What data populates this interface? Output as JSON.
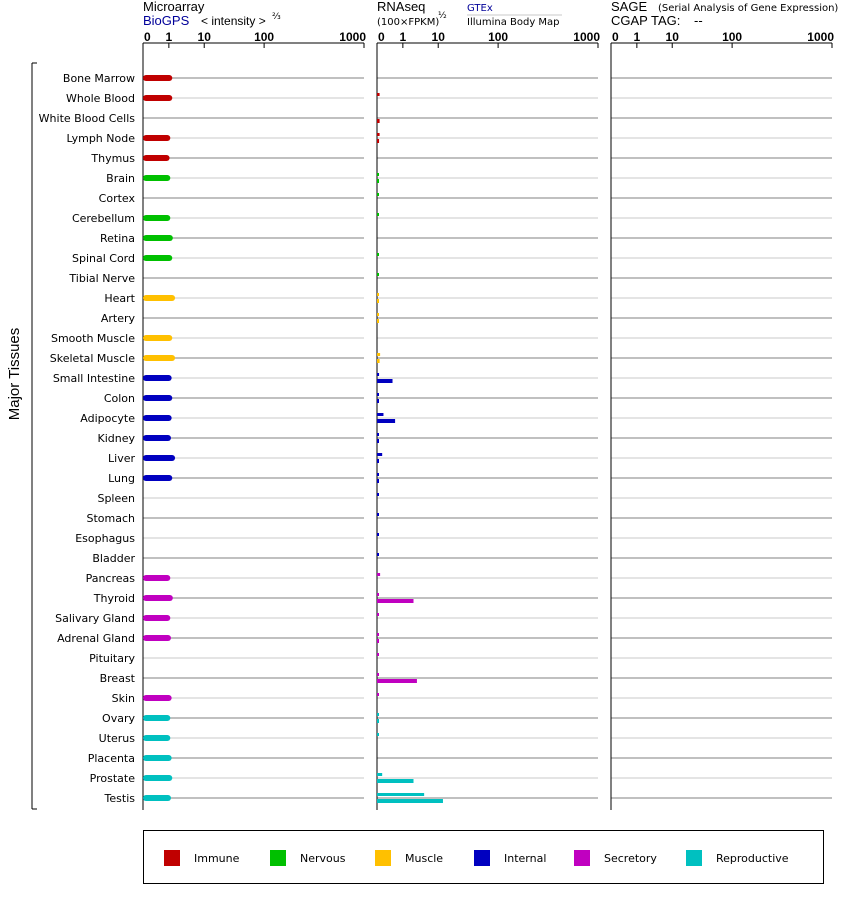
{
  "panels": {
    "microarray": {
      "title": "Microarray",
      "source": "BioGPS",
      "unit_label": "< intensity >",
      "unit_exponent": "⅔",
      "ticks": [
        "0",
        "1",
        "10",
        "100",
        "1000"
      ]
    },
    "rnaseq": {
      "title": "RNAseq",
      "unit_label": "(100×FPKM)",
      "unit_exponent": "½",
      "source_gtex": "GTEx",
      "source_illumina": "Illumina Body Map",
      "ticks": [
        "0",
        "1",
        "10",
        "100",
        "1000"
      ]
    },
    "sage": {
      "title": "SAGE",
      "subtitle": "(Serial Analysis of Gene Expression)",
      "tag_label": "CGAP TAG:",
      "tag_value": "--",
      "ticks": [
        "0",
        "1",
        "10",
        "100",
        "1000"
      ]
    }
  },
  "side_label": "Major Tissues",
  "colors": {
    "Immune": "#c00000",
    "Nervous": "#00c000",
    "Muscle": "#ffc000",
    "Internal": "#0000c0",
    "Secretory": "#c000c0",
    "Reproductive": "#00c0c0"
  },
  "legend": [
    "Immune",
    "Nervous",
    "Muscle",
    "Internal",
    "Secretory",
    "Reproductive"
  ],
  "chart_data": {
    "type": "bar",
    "scale": "log-like (0, 1, 10, 100, 1000)",
    "categories": [
      "Bone Marrow",
      "Whole Blood",
      "White Blood Cells",
      "Lymph Node",
      "Thymus",
      "Brain",
      "Cortex",
      "Cerebellum",
      "Retina",
      "Spinal Cord",
      "Tibial Nerve",
      "Heart",
      "Artery",
      "Smooth Muscle",
      "Skeletal Muscle",
      "Small Intestine",
      "Colon",
      "Adipocyte",
      "Kidney",
      "Liver",
      "Lung",
      "Spleen",
      "Stomach",
      "Esophagus",
      "Bladder",
      "Pancreas",
      "Thyroid",
      "Salivary Gland",
      "Adrenal Gland",
      "Pituitary",
      "Breast",
      "Skin",
      "Ovary",
      "Uterus",
      "Placenta",
      "Prostate",
      "Testis"
    ],
    "groups": [
      "Immune",
      "Immune",
      "Immune",
      "Immune",
      "Immune",
      "Nervous",
      "Nervous",
      "Nervous",
      "Nervous",
      "Nervous",
      "Nervous",
      "Muscle",
      "Muscle",
      "Muscle",
      "Muscle",
      "Internal",
      "Internal",
      "Internal",
      "Internal",
      "Internal",
      "Internal",
      "Internal",
      "Internal",
      "Internal",
      "Internal",
      "Secretory",
      "Secretory",
      "Secretory",
      "Secretory",
      "Secretory",
      "Secretory",
      "Secretory",
      "Reproductive",
      "Reproductive",
      "Reproductive",
      "Reproductive",
      "Reproductive"
    ],
    "series": [
      {
        "name": "Microarray",
        "values": [
          1.25,
          1.25,
          null,
          1.1,
          1.05,
          1.1,
          null,
          1.1,
          1.3,
          1.25,
          null,
          1.5,
          null,
          1.25,
          1.5,
          1.2,
          1.25,
          1.2,
          1.15,
          1.5,
          1.25,
          null,
          null,
          null,
          null,
          1.1,
          1.3,
          1.1,
          1.15,
          null,
          null,
          1.2,
          1.1,
          1.1,
          1.2,
          1.25,
          1.15
        ]
      },
      {
        "name": "GTEx",
        "values": [
          null,
          0.1,
          null,
          0.1,
          null,
          0.06,
          0.05,
          0.06,
          null,
          0.06,
          0.06,
          0.06,
          0.06,
          null,
          0.12,
          0.08,
          0.06,
          0.25,
          0.06,
          0.2,
          0.06,
          0.06,
          0.06,
          0.06,
          0.06,
          0.12,
          0.06,
          0.06,
          0.06,
          0.06,
          0.06,
          0.06,
          0.05,
          0.05,
          null,
          0.2,
          4
        ]
      },
      {
        "name": "Illumina Body Map",
        "values": [
          null,
          null,
          0.1,
          0.08,
          null,
          0.05,
          null,
          null,
          null,
          null,
          null,
          0.06,
          0.05,
          null,
          0.1,
          0.6,
          0.06,
          0.7,
          0.06,
          0.06,
          0.06,
          null,
          null,
          null,
          null,
          null,
          2,
          null,
          0.06,
          null,
          2.5,
          null,
          0.05,
          null,
          null,
          2,
          12
        ]
      }
    ],
    "xlim": [
      0,
      1000
    ]
  }
}
